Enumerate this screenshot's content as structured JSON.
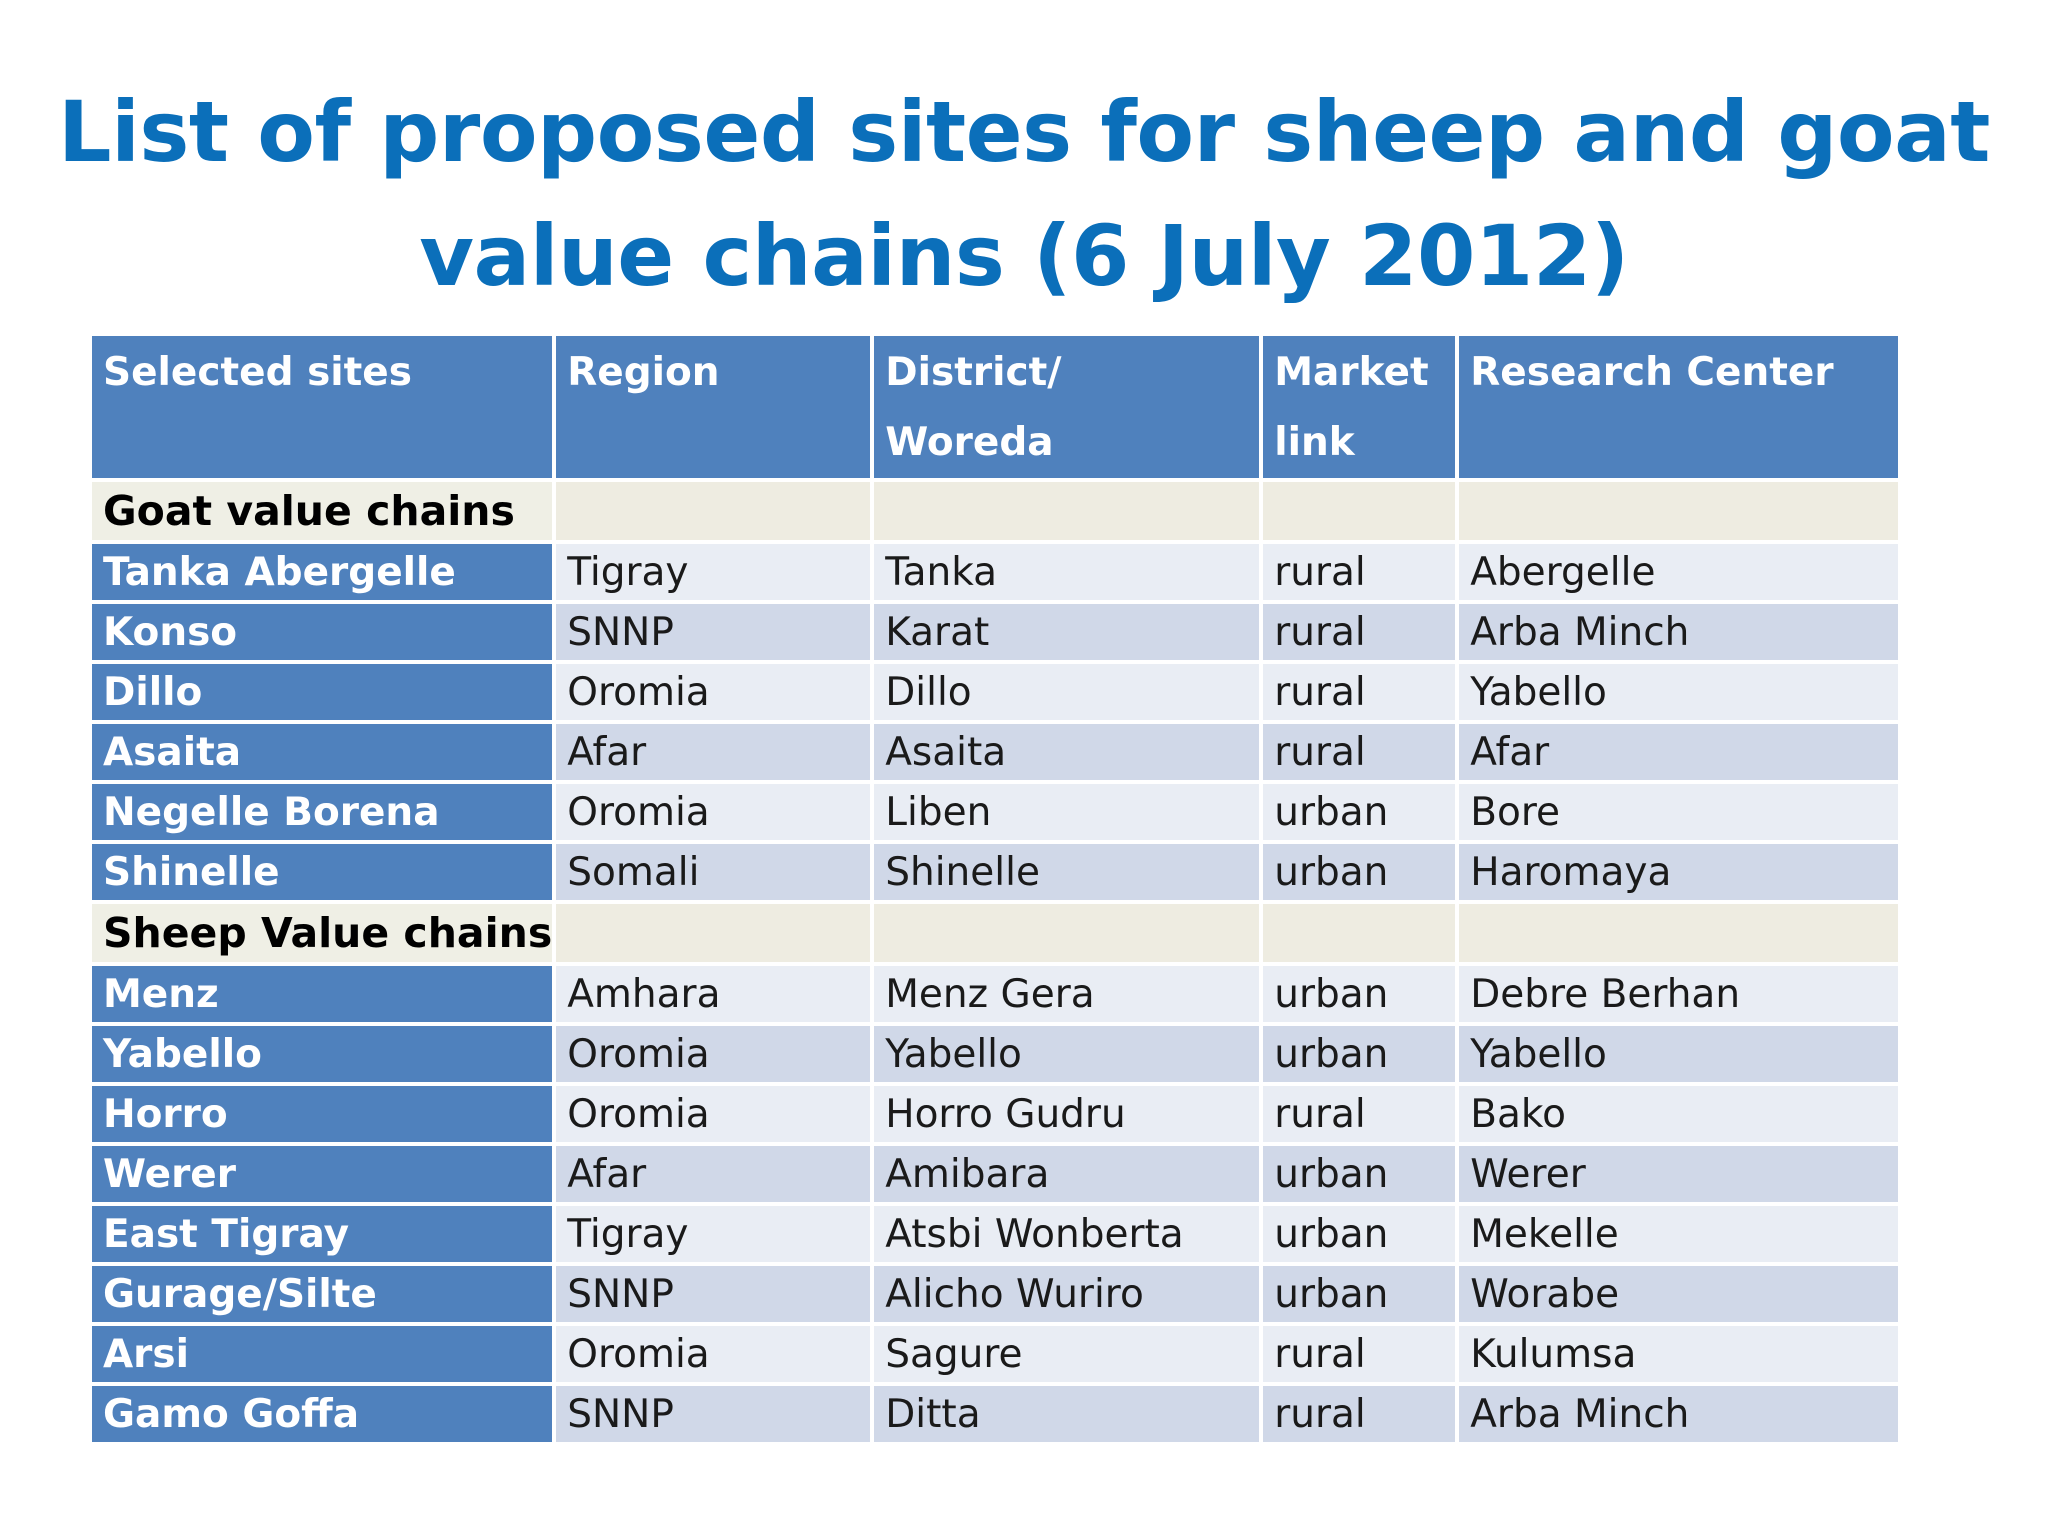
{
  "slide": {
    "title_line1": "List of proposed sites for sheep and goat",
    "title_line2": "value chains (6 July 2012)"
  },
  "table": {
    "headers": [
      "Selected sites",
      "Region",
      "District/ Woreda",
      "Market link",
      "Research Center"
    ],
    "header_lines": {
      "district_1": "District/",
      "district_2": "Woreda",
      "market_1": "Market",
      "market_2": "link"
    },
    "groups": [
      {
        "label": "Goat value chains",
        "rows": [
          {
            "site": "Tanka Abergelle",
            "region": "Tigray",
            "district": "Tanka",
            "market": "rural",
            "center": "Abergelle"
          },
          {
            "site": "Konso",
            "region": "SNNP",
            "district": "Karat",
            "market": "rural",
            "center": "Arba Minch"
          },
          {
            "site": "Dillo",
            "region": "Oromia",
            "district": "Dillo",
            "market": "rural",
            "center": "Yabello"
          },
          {
            "site": "Asaita",
            "region": "Afar",
            "district": "Asaita",
            "market": "rural",
            "center": "Afar"
          },
          {
            "site": "Negelle Borena",
            "region": "Oromia",
            "district": "Liben",
            "market": "urban",
            "center": "Bore"
          },
          {
            "site": "Shinelle",
            "region": "Somali",
            "district": "Shinelle",
            "market": "urban",
            "center": "Haromaya"
          }
        ]
      },
      {
        "label": "Sheep Value chains",
        "rows": [
          {
            "site": "Menz",
            "region": "Amhara",
            "district": "Menz Gera",
            "market": "urban",
            "center": "Debre Berhan"
          },
          {
            "site": "Yabello",
            "region": "Oromia",
            "district": "Yabello",
            "market": "urban",
            "center": "Yabello"
          },
          {
            "site": "Horro",
            "region": "Oromia",
            "district": "Horro Gudru",
            "market": "rural",
            "center": "Bako"
          },
          {
            "site": "Werer",
            "region": "Afar",
            "district": "Amibara",
            "market": "urban",
            "center": "Werer"
          },
          {
            "site": "East Tigray",
            "region": "Tigray",
            "district": "Atsbi Wonberta",
            "market": "urban",
            "center": "Mekelle"
          },
          {
            "site": "Gurage/Silte",
            "region": "SNNP",
            "district": "Alicho Wuriro",
            "market": "urban",
            "center": "Worabe"
          },
          {
            "site": "Arsi",
            "region": "Oromia",
            "district": "Sagure",
            "market": "rural",
            "center": "Kulumsa"
          },
          {
            "site": "Gamo Goffa",
            "region": "SNNP",
            "district": "Ditta",
            "market": "rural",
            "center": "Arba Minch"
          }
        ]
      }
    ]
  }
}
